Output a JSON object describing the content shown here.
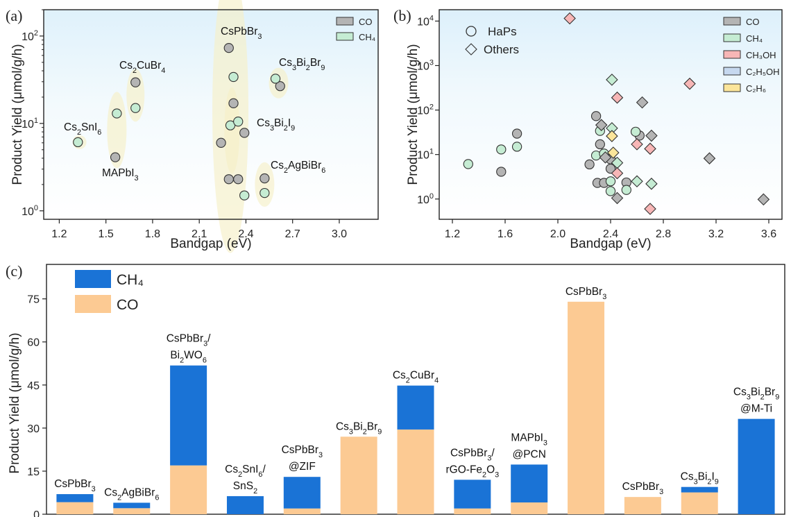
{
  "chart_data": [
    {
      "panel": "(a)",
      "type": "scatter",
      "xlabel": "Bandgap (eV)",
      "ylabel": "Product Yield (μmol/g/h)",
      "xscale": "linear",
      "yscale": "log",
      "xlim": [
        1.1,
        3.25
      ],
      "ylim": [
        0.8,
        200
      ],
      "xticks": [
        "1.2",
        "1.5",
        "1.8",
        "2.1",
        "2.4",
        "2.7",
        "3.0"
      ],
      "yticks": [
        "10^0",
        "10^1",
        "10^2"
      ],
      "legend": {
        "position": "top-right",
        "entries": [
          {
            "label": "CO",
            "color": "#b4b4b4"
          },
          {
            "label": "CH₄",
            "color": "#c5ecd3"
          }
        ]
      },
      "series": [
        {
          "name": "CO",
          "color": "#b4b4b4",
          "points": [
            [
              1.56,
              4.1
            ],
            [
              1.69,
              29.5
            ],
            [
              2.24,
              6.0
            ],
            [
              2.29,
              73.0
            ],
            [
              2.29,
              2.3
            ],
            [
              2.32,
              17.0
            ],
            [
              2.35,
              2.3
            ],
            [
              2.39,
              7.8
            ],
            [
              2.52,
              2.35
            ],
            [
              2.62,
              26.7
            ]
          ]
        },
        {
          "name": "CH₄",
          "color": "#c5ecd3",
          "points": [
            [
              1.32,
              6.1
            ],
            [
              1.57,
              13.0
            ],
            [
              1.69,
              15.0
            ],
            [
              2.3,
              9.5
            ],
            [
              2.32,
              34.0
            ],
            [
              2.35,
              10.5
            ],
            [
              2.39,
              1.5
            ],
            [
              2.52,
              1.6
            ],
            [
              2.59,
              32.5
            ]
          ]
        }
      ],
      "annotations": [
        {
          "text": "Cs2SnI6",
          "parts": [
            [
              "Cs",
              0
            ],
            [
              "2",
              1
            ],
            [
              "SnI",
              0
            ],
            [
              "6",
              1
            ]
          ]
        },
        {
          "text": "MAPbI3",
          "parts": [
            [
              "MAPbI",
              0
            ],
            [
              "3",
              1
            ]
          ]
        },
        {
          "text": "Cs2CuBr4",
          "parts": [
            [
              "Cs",
              0
            ],
            [
              "2",
              1
            ],
            [
              "CuBr",
              0
            ],
            [
              "4",
              1
            ]
          ]
        },
        {
          "text": "CsPbBr3",
          "parts": [
            [
              "CsPbBr",
              0
            ],
            [
              "3",
              1
            ]
          ]
        },
        {
          "text": "Cs3Bi2Br9",
          "parts": [
            [
              "Cs",
              0
            ],
            [
              "3",
              1
            ],
            [
              "Bi",
              0
            ],
            [
              "2",
              1
            ],
            [
              "Br",
              0
            ],
            [
              "9",
              1
            ]
          ]
        },
        {
          "text": "Cs3Bi2I9",
          "parts": [
            [
              "Cs",
              0
            ],
            [
              "3",
              1
            ],
            [
              "Bi",
              0
            ],
            [
              "2",
              1
            ],
            [
              "I",
              0
            ],
            [
              "9",
              1
            ]
          ]
        },
        {
          "text": "Cs2AgBiBr6",
          "parts": [
            [
              "Cs",
              0
            ],
            [
              "2",
              1
            ],
            [
              "AgBiBr",
              0
            ],
            [
              "6",
              1
            ]
          ]
        }
      ]
    },
    {
      "panel": "(b)",
      "type": "scatter",
      "xlabel": "Bandgap (eV)",
      "ylabel": "Product Yield (μmol/g/h)",
      "xscale": "linear",
      "yscale": "log",
      "xlim": [
        1.1,
        3.7
      ],
      "ylim": [
        0.35,
        18000
      ],
      "xticks": [
        "1.2",
        "1.6",
        "2.0",
        "2.4",
        "2.8",
        "3.2",
        "3.6"
      ],
      "yticks": [
        "10^0",
        "10^1",
        "10^2",
        "10^3",
        "10^4"
      ],
      "marker_legend": [
        {
          "label": "HaPs",
          "marker": "circle"
        },
        {
          "label": "Others",
          "marker": "diamond"
        }
      ],
      "legend": {
        "position": "top-right",
        "entries": [
          {
            "label": "CO",
            "color": "#b4b4b4"
          },
          {
            "label": "CH₄",
            "color": "#c5ecd3"
          },
          {
            "label": "CH₃OH",
            "color": "#f7b6b6"
          },
          {
            "label": "C₂H₅OH",
            "color": "#c6d8ef"
          },
          {
            "label": "C₂H₆",
            "color": "#fbe59a"
          }
        ]
      },
      "series": [
        {
          "name": "CO",
          "marker": "circle",
          "color": "#b4b4b4",
          "points": [
            [
              1.57,
              4.1
            ],
            [
              1.69,
              29.5
            ],
            [
              2.24,
              6.0
            ],
            [
              2.29,
              73.0
            ],
            [
              2.3,
              2.3
            ],
            [
              2.32,
              17.0
            ],
            [
              2.35,
              2.3
            ],
            [
              2.4,
              4.8
            ],
            [
              2.4,
              7.8
            ],
            [
              2.52,
              2.35
            ],
            [
              2.62,
              26.7
            ]
          ]
        },
        {
          "name": "CH₄",
          "marker": "circle",
          "color": "#c5ecd3",
          "points": [
            [
              1.32,
              6.1
            ],
            [
              1.57,
              13.0
            ],
            [
              1.69,
              15.0
            ],
            [
              2.29,
              9.5
            ],
            [
              2.32,
              34.0
            ],
            [
              2.35,
              10.5
            ],
            [
              2.4,
              1.5
            ],
            [
              2.4,
              2.5
            ],
            [
              2.52,
              1.6
            ],
            [
              2.59,
              32.5
            ]
          ]
        },
        {
          "name": "CO",
          "marker": "diamond",
          "color": "#b4b4b4",
          "points": [
            [
              2.33,
              46.0
            ],
            [
              2.36,
              8.6
            ],
            [
              2.45,
              1.05
            ],
            [
              2.64,
              148.0
            ],
            [
              2.71,
              26.5
            ],
            [
              3.15,
              8.2
            ],
            [
              3.56,
              0.98
            ]
          ]
        },
        {
          "name": "CH₄",
          "marker": "diamond",
          "color": "#c5ecd3",
          "points": [
            [
              2.41,
              480.0
            ],
            [
              2.41,
              39.0
            ],
            [
              2.45,
              6.5
            ],
            [
              2.6,
              2.5
            ],
            [
              2.71,
              2.2
            ]
          ]
        },
        {
          "name": "CH₃OH",
          "marker": "diamond",
          "color": "#f7b6b6",
          "points": [
            [
              2.09,
              11500.0
            ],
            [
              2.45,
              190.0
            ],
            [
              2.45,
              3.8
            ],
            [
              2.6,
              17.0
            ],
            [
              2.7,
              13.5
            ],
            [
              2.7,
              0.6
            ],
            [
              3.0,
              390.0
            ]
          ]
        },
        {
          "name": "C₂H₆",
          "marker": "diamond",
          "color": "#fbe59a",
          "points": [
            [
              2.41,
              26.0
            ],
            [
              2.42,
              11.0
            ]
          ]
        }
      ]
    },
    {
      "panel": "(c)",
      "type": "bar",
      "stacked": true,
      "ylabel": "Product Yield (μmol/g/h)",
      "ylim": [
        0,
        87
      ],
      "yticks": [
        0,
        15,
        30,
        45,
        60,
        75
      ],
      "legend": {
        "position": "top-left",
        "entries": [
          {
            "label": "CH₄",
            "color": "#1a73d6"
          },
          {
            "label": "CO",
            "color": "#fcca93"
          }
        ]
      },
      "categories": [
        "CsPbBr3",
        "Cs2AgBiBr6",
        "CsPbBr3/Bi2WO6",
        "Cs2SnI6/SnS2",
        "CsPbBr3@ZIF",
        "Cs3Bi2Br9",
        "Cs2CuBr4",
        "CsPbBr3/rGO-Fe2O3",
        "MAPbI3@PCN",
        "CsPbBr3",
        "CsPbBr3",
        "Cs3Bi2I9",
        "Cs3Bi2Br9@M-Ti"
      ],
      "category_lines": [
        [
          [
            [
              "CsPbBr",
              0
            ],
            [
              "3",
              1
            ]
          ]
        ],
        [
          [
            [
              "Cs",
              0
            ],
            [
              "2",
              1
            ],
            [
              "AgBiBr",
              0
            ],
            [
              "6",
              1
            ]
          ]
        ],
        [
          [
            [
              "CsPbBr",
              0
            ],
            [
              "3",
              1
            ],
            [
              "/",
              0
            ]
          ],
          [
            [
              "Bi",
              0
            ],
            [
              "2",
              1
            ],
            [
              "WO",
              0
            ],
            [
              "6",
              1
            ]
          ]
        ],
        [
          [
            [
              "Cs",
              0
            ],
            [
              "2",
              1
            ],
            [
              "SnI",
              0
            ],
            [
              "6",
              1
            ],
            [
              "/",
              0
            ]
          ],
          [
            [
              "SnS",
              0
            ],
            [
              "2",
              1
            ]
          ]
        ],
        [
          [
            [
              "CsPbBr",
              0
            ],
            [
              "3",
              1
            ]
          ],
          [
            [
              "@ZIF",
              0
            ]
          ]
        ],
        [
          [
            [
              "Cs",
              0
            ],
            [
              "3",
              1
            ],
            [
              "Bi",
              0
            ],
            [
              "2",
              1
            ],
            [
              "Br",
              0
            ],
            [
              "9",
              1
            ]
          ]
        ],
        [
          [
            [
              "Cs",
              0
            ],
            [
              "2",
              1
            ],
            [
              "CuBr",
              0
            ],
            [
              "4",
              1
            ]
          ]
        ],
        [
          [
            [
              "CsPbBr",
              0
            ],
            [
              "3",
              1
            ],
            [
              "/",
              0
            ]
          ],
          [
            [
              "rGO-Fe",
              0
            ],
            [
              "2",
              1
            ],
            [
              "O",
              0
            ],
            [
              "3",
              1
            ]
          ]
        ],
        [
          [
            [
              "MAPbI",
              0
            ],
            [
              "3",
              1
            ]
          ],
          [
            [
              "@PCN",
              0
            ]
          ]
        ],
        [
          [
            [
              "CsPbBr",
              0
            ],
            [
              "3",
              1
            ]
          ]
        ],
        [
          [
            [
              "CsPbBr",
              0
            ],
            [
              "3",
              1
            ]
          ]
        ],
        [
          [
            [
              "Cs",
              0
            ],
            [
              "3",
              1
            ],
            [
              "Bi",
              0
            ],
            [
              "2",
              1
            ],
            [
              "I",
              0
            ],
            [
              "9",
              1
            ]
          ]
        ],
        [
          [
            [
              "Cs",
              0
            ],
            [
              "3",
              1
            ],
            [
              "Bi",
              0
            ],
            [
              "2",
              1
            ],
            [
              "Br",
              0
            ],
            [
              "9",
              1
            ]
          ],
          [
            [
              "@M-Ti",
              0
            ]
          ]
        ]
      ],
      "series": [
        {
          "name": "CO",
          "color": "#fcca93",
          "values": [
            4.2,
            2.1,
            17.0,
            0.0,
            2.0,
            27.0,
            29.5,
            2.0,
            4.1,
            74.0,
            6.0,
            7.6,
            0.0
          ]
        },
        {
          "name": "CH₄",
          "color": "#1a73d6",
          "values": [
            2.8,
            1.9,
            34.8,
            6.3,
            11.0,
            0.0,
            15.3,
            10.0,
            13.2,
            0.0,
            0.0,
            1.9,
            33.2
          ]
        }
      ]
    }
  ],
  "panel_labels": [
    "(a)",
    "(b)",
    "(c)"
  ]
}
